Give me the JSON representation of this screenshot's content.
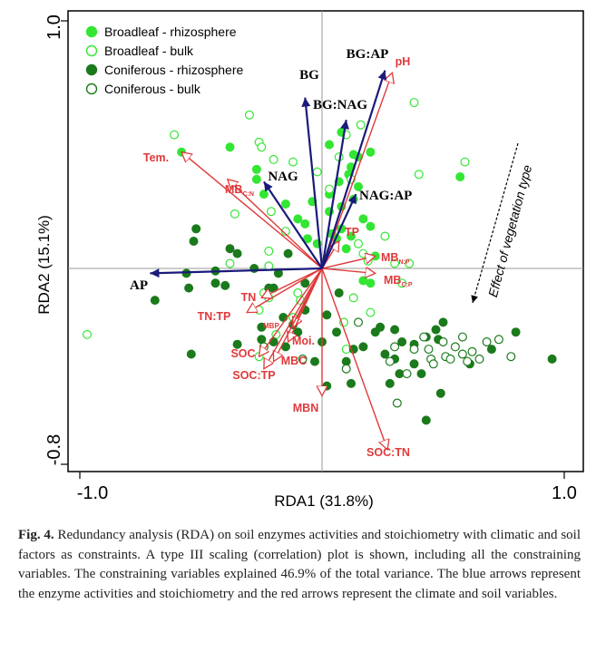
{
  "chart_data": {
    "type": "scatter",
    "title": "",
    "xlabel": "RDA1 (31.8%)",
    "ylabel": "RDA2 (15.1%)",
    "xlim": [
      -1.0,
      1.0
    ],
    "ylim": [
      -0.8,
      1.0
    ],
    "x_tick_labels": [
      "-1.0",
      "1.0"
    ],
    "y_tick_labels": [
      "1.0",
      "-0.8"
    ],
    "reference_lines": [
      0,
      0
    ],
    "legend_position": "top-left",
    "colors": {
      "broadleaf": "#33e633",
      "coniferous": "#1b7a1b",
      "env_arrows": "#e0393b",
      "enzyme_arrows": "#1a1a7a",
      "refline": "#999999"
    },
    "series": [
      {
        "name": "Broadleaf - rhizosphere",
        "marker": "filled",
        "color": "#33e633",
        "points": [
          [
            -0.58,
            0.47
          ],
          [
            -0.27,
            0.4
          ],
          [
            -0.38,
            0.49
          ],
          [
            -0.27,
            0.36
          ],
          [
            -0.24,
            0.3
          ],
          [
            -0.15,
            0.26
          ],
          [
            -0.1,
            0.2
          ],
          [
            -0.07,
            0.18
          ],
          [
            -0.06,
            0.12
          ],
          [
            -0.02,
            0.1
          ],
          [
            0.04,
            0.14
          ],
          [
            0.06,
            0.12
          ],
          [
            0.1,
            0.08
          ],
          [
            0.08,
            0.16
          ],
          [
            0.12,
            0.13
          ],
          [
            0.03,
            0.23
          ],
          [
            0.08,
            0.25
          ],
          [
            0.13,
            0.28
          ],
          [
            0.15,
            0.33
          ],
          [
            0.15,
            0.45
          ],
          [
            0.08,
            0.55
          ],
          [
            0.13,
            0.46
          ],
          [
            0.07,
            0.35
          ],
          [
            0.03,
            0.3
          ],
          [
            -0.04,
            0.27
          ],
          [
            0.11,
            0.38
          ],
          [
            0.2,
            0.47
          ],
          [
            0.17,
            0.2
          ],
          [
            0.2,
            0.17
          ],
          [
            0.22,
            0.05
          ],
          [
            0.17,
            -0.05
          ],
          [
            0.2,
            -0.06
          ],
          [
            0.12,
            0.41
          ],
          [
            0.57,
            0.37
          ],
          [
            0.03,
            0.5
          ]
        ]
      },
      {
        "name": "Broadleaf - bulk",
        "marker": "open",
        "color": "#33e633",
        "points": [
          [
            -0.97,
            -0.27
          ],
          [
            -0.61,
            0.54
          ],
          [
            -0.38,
            0.02
          ],
          [
            -0.36,
            0.22
          ],
          [
            -0.3,
            0.62
          ],
          [
            -0.26,
            0.51
          ],
          [
            -0.25,
            0.49
          ],
          [
            -0.2,
            0.44
          ],
          [
            -0.12,
            0.43
          ],
          [
            -0.02,
            0.39
          ],
          [
            -0.21,
            0.23
          ],
          [
            -0.15,
            0.15
          ],
          [
            -0.22,
            0.07
          ],
          [
            -0.24,
            -0.1
          ],
          [
            -0.22,
            -0.12
          ],
          [
            -0.1,
            -0.1
          ],
          [
            -0.09,
            -0.13
          ],
          [
            -0.12,
            -0.2
          ],
          [
            -0.26,
            -0.17
          ],
          [
            -0.19,
            -0.27
          ],
          [
            -0.26,
            -0.36
          ],
          [
            0.03,
            0.32
          ],
          [
            0.12,
            0.36
          ],
          [
            0.07,
            0.45
          ],
          [
            0.1,
            0.54
          ],
          [
            0.16,
            0.58
          ],
          [
            0.15,
            0.1
          ],
          [
            0.17,
            0.06
          ],
          [
            0.19,
            0.03
          ],
          [
            0.13,
            -0.12
          ],
          [
            0.2,
            -0.18
          ],
          [
            0.09,
            -0.22
          ],
          [
            0.26,
            0.13
          ],
          [
            0.3,
            0.02
          ],
          [
            0.36,
            0.02
          ],
          [
            0.33,
            -0.06
          ],
          [
            0.38,
            0.67
          ],
          [
            0.4,
            0.38
          ],
          [
            0.59,
            0.43
          ],
          [
            0.1,
            -0.33
          ],
          [
            -0.22,
            0.01
          ]
        ]
      },
      {
        "name": "Coniferous - rhizosphere",
        "marker": "filled",
        "color": "#1b7a1b",
        "points": [
          [
            -0.69,
            -0.13
          ],
          [
            -0.55,
            -0.08
          ],
          [
            -0.54,
            -0.35
          ],
          [
            -0.52,
            0.16
          ],
          [
            -0.53,
            0.11
          ],
          [
            -0.56,
            -0.02
          ],
          [
            -0.44,
            -0.01
          ],
          [
            -0.38,
            0.08
          ],
          [
            -0.4,
            -0.07
          ],
          [
            -0.35,
            0.06
          ],
          [
            -0.22,
            -0.08
          ],
          [
            -0.25,
            -0.24
          ],
          [
            -0.2,
            -0.3
          ],
          [
            -0.16,
            -0.2
          ],
          [
            -0.15,
            -0.32
          ],
          [
            -0.12,
            -0.23
          ],
          [
            -0.1,
            -0.26
          ],
          [
            -0.07,
            -0.17
          ],
          [
            -0.03,
            -0.38
          ],
          [
            0.0,
            -0.3
          ],
          [
            0.02,
            -0.19
          ],
          [
            -0.18,
            -0.02
          ],
          [
            -0.25,
            -0.29
          ],
          [
            -0.2,
            -0.08
          ],
          [
            -0.28,
            0.0
          ],
          [
            0.06,
            -0.26
          ],
          [
            0.07,
            -0.1
          ],
          [
            0.1,
            -0.38
          ],
          [
            0.13,
            -0.33
          ],
          [
            0.17,
            -0.32
          ],
          [
            0.22,
            -0.26
          ],
          [
            0.26,
            -0.35
          ],
          [
            0.3,
            -0.37
          ],
          [
            0.32,
            -0.43
          ],
          [
            0.28,
            -0.47
          ],
          [
            0.3,
            -0.25
          ],
          [
            0.33,
            -0.3
          ],
          [
            0.38,
            -0.39
          ],
          [
            0.41,
            -0.43
          ],
          [
            0.43,
            -0.62
          ],
          [
            0.38,
            -0.31
          ],
          [
            0.43,
            -0.28
          ],
          [
            0.47,
            -0.25
          ],
          [
            0.5,
            -0.22
          ],
          [
            0.48,
            -0.29
          ],
          [
            0.49,
            -0.51
          ],
          [
            0.61,
            -0.39
          ],
          [
            0.7,
            -0.33
          ],
          [
            0.8,
            -0.26
          ],
          [
            0.95,
            -0.37
          ],
          [
            -0.35,
            -0.31
          ],
          [
            0.24,
            -0.24
          ],
          [
            0.02,
            -0.48
          ],
          [
            -0.14,
            0.06
          ],
          [
            -0.07,
            -0.06
          ],
          [
            0.12,
            -0.47
          ],
          [
            -0.44,
            -0.06
          ]
        ]
      },
      {
        "name": "Coniferous - bulk",
        "marker": "open",
        "color": "#1b7a1b",
        "points": [
          [
            0.28,
            -0.38
          ],
          [
            0.3,
            -0.32
          ],
          [
            0.35,
            -0.43
          ],
          [
            0.38,
            -0.33
          ],
          [
            0.42,
            -0.28
          ],
          [
            0.44,
            -0.33
          ],
          [
            0.5,
            -0.3
          ],
          [
            0.51,
            -0.36
          ],
          [
            0.55,
            -0.32
          ],
          [
            0.58,
            -0.28
          ],
          [
            0.62,
            -0.34
          ],
          [
            0.65,
            -0.37
          ],
          [
            0.68,
            -0.3
          ],
          [
            0.73,
            -0.29
          ],
          [
            0.78,
            -0.36
          ],
          [
            0.53,
            -0.37
          ],
          [
            0.45,
            -0.37
          ],
          [
            0.31,
            -0.55
          ],
          [
            0.1,
            -0.41
          ],
          [
            0.15,
            -0.22
          ],
          [
            -0.08,
            -0.37
          ],
          [
            -0.24,
            -0.32
          ],
          [
            0.46,
            -0.39
          ],
          [
            0.6,
            -0.38
          ],
          [
            0.58,
            -0.35
          ]
        ]
      }
    ],
    "enzyme_arrows": [
      {
        "label": "BG:AP",
        "end": [
          0.26,
          0.8
        ]
      },
      {
        "label": "BG",
        "end": [
          -0.07,
          0.69
        ]
      },
      {
        "label": "BG:NAG",
        "end": [
          0.1,
          0.6
        ]
      },
      {
        "label": "NAG",
        "end": [
          -0.24,
          0.35
        ]
      },
      {
        "label": "NAG:AP",
        "end": [
          0.14,
          0.3
        ]
      },
      {
        "label": "AP",
        "end": [
          -0.71,
          -0.02
        ]
      }
    ],
    "env_arrows": [
      {
        "label": "pH",
        "main": "pH",
        "sub": "",
        "end": [
          0.29,
          0.79
        ]
      },
      {
        "label": "Tem.",
        "main": "Tem.",
        "sub": "",
        "end": [
          -0.58,
          0.47
        ]
      },
      {
        "label": "MBC:N",
        "main": "MB",
        "sub": "C:N",
        "end": [
          -0.39,
          0.36
        ]
      },
      {
        "label": "TP",
        "main": "TP",
        "sub": "",
        "end": [
          0.07,
          0.11
        ]
      },
      {
        "label": "MBN:P",
        "main": "MB",
        "sub": "N:P",
        "end": [
          0.22,
          0.05
        ]
      },
      {
        "label": "MBC:P",
        "main": "MB",
        "sub": "C:P",
        "end": [
          0.22,
          -0.02
        ]
      },
      {
        "label": "TN",
        "main": "TN",
        "sub": "",
        "end": [
          -0.25,
          -0.12
        ]
      },
      {
        "label": "TN:TP",
        "main": "TN:TP",
        "sub": "",
        "end": [
          -0.31,
          -0.18
        ]
      },
      {
        "label": "MBP",
        "main": "MBP",
        "sub": "",
        "end": [
          -0.12,
          -0.24
        ]
      },
      {
        "label": "Moi.",
        "main": "Moi.",
        "sub": "",
        "end": [
          -0.14,
          -0.3
        ]
      },
      {
        "label": "SOC",
        "main": "SOC",
        "sub": "",
        "end": [
          -0.26,
          -0.36
        ]
      },
      {
        "label": "MBC",
        "main": "MBC",
        "sub": "",
        "end": [
          -0.2,
          -0.38
        ]
      },
      {
        "label": "SOC:TP",
        "main": "SOC:TP",
        "sub": "",
        "end": [
          -0.24,
          -0.41
        ]
      },
      {
        "label": "MBN",
        "main": "MBN",
        "sub": "",
        "end": [
          0.0,
          -0.52
        ]
      },
      {
        "label": "SOC:TN",
        "main": "SOC:TN",
        "sub": "",
        "end": [
          0.27,
          -0.74
        ]
      }
    ],
    "annotation": "Effect of vegetation type"
  },
  "caption": {
    "label": "Fig. 4.",
    "text": " Redundancy analysis (RDA) on soil enzymes activities and stoichiometry with climatic and soil factors as constraints. A type III scaling (correlation) plot is shown, including all the constraining variables. The constraining variables explained 46.9% of the total variance. The blue arrows represent the enzyme activities and stoichiometry and the red arrows represent the climate and soil variables."
  }
}
